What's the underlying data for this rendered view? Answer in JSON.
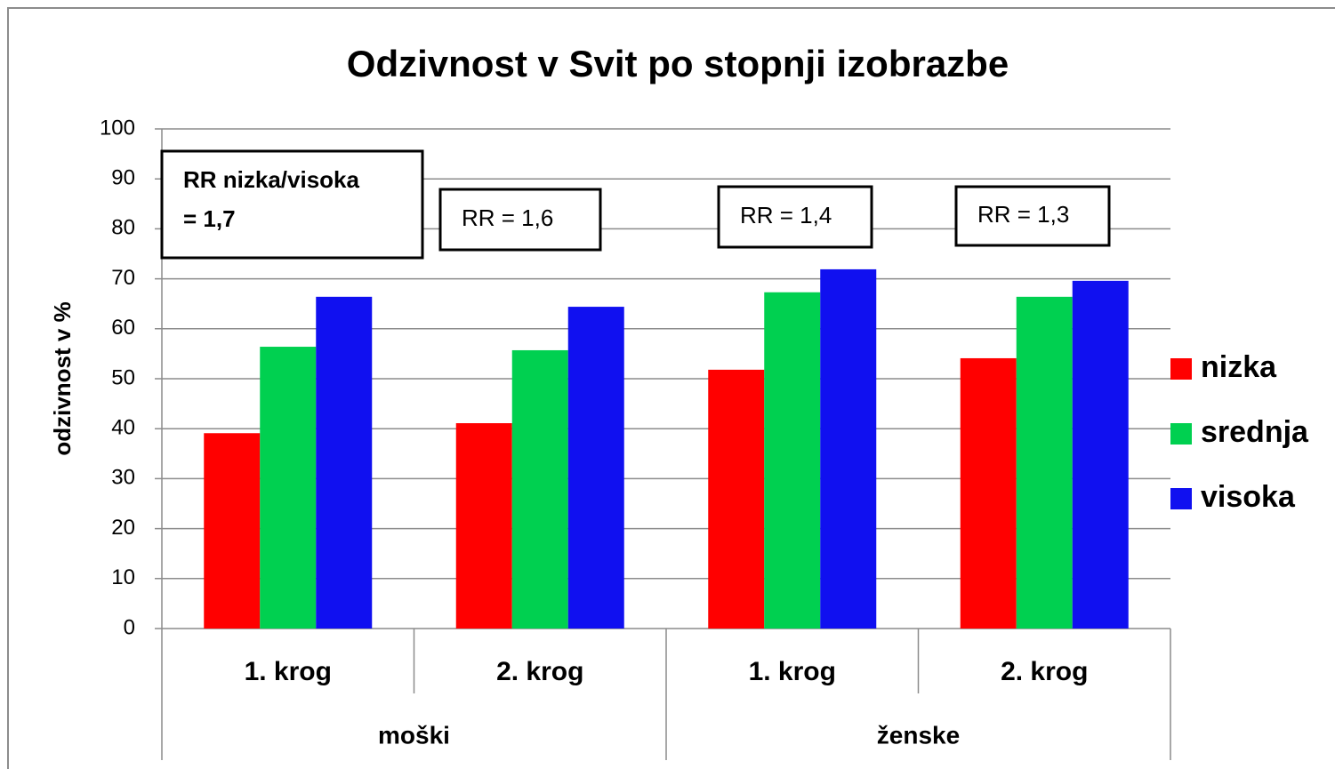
{
  "chart_data": {
    "type": "bar",
    "title": "Odzivnost v Svit po stopnji izobrazbe",
    "y_label": "odzivnost v %",
    "categories": [
      "1. krog",
      "2. krog",
      "1. krog",
      "2. krog"
    ],
    "groups": [
      "moški",
      "ženske"
    ],
    "series": [
      {
        "name": "nizka",
        "color": "#ff0000",
        "values": [
          39.1,
          41.1,
          51.8,
          54.1
        ]
      },
      {
        "name": "srednja",
        "color": "#00d050",
        "values": [
          56.4,
          55.7,
          67.3,
          66.4
        ]
      },
      {
        "name": "visoka",
        "color": "#1010f0",
        "values": [
          66.4,
          64.4,
          71.9,
          69.6
        ]
      }
    ],
    "ylim": [
      0,
      100
    ],
    "yticks": [
      0,
      10,
      20,
      30,
      40,
      50,
      60,
      70,
      80,
      90,
      100
    ],
    "grid": true,
    "legend": "right",
    "annotations": [
      {
        "lines": [
          "RR nizka/visoka",
          "= 1,7"
        ]
      },
      {
        "lines": [
          "RR = 1,6"
        ]
      },
      {
        "lines": [
          "RR = 1,4"
        ]
      },
      {
        "lines": [
          "RR = 1,3"
        ]
      }
    ]
  }
}
